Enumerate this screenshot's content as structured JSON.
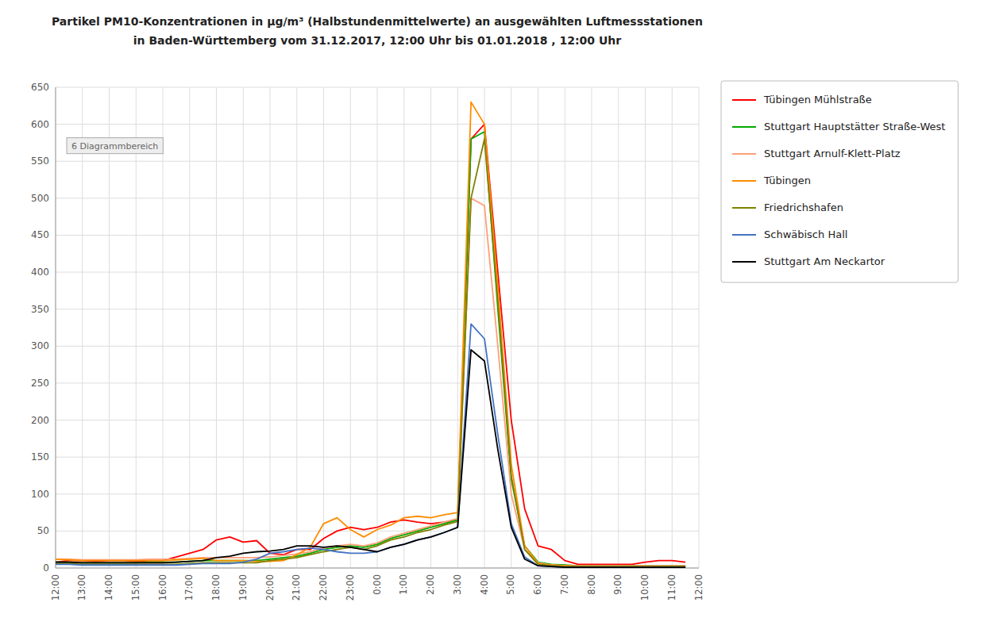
{
  "chart_data": {
    "type": "line",
    "title": "Partikel PM10-Konzentrationen in µg/m³ (Halbstundenmittelwerte) an ausgewählten Luftmessstationen",
    "subtitle": "in Baden-Württemberg vom 31.12.2017, 12:00 Uhr bis 01.01.2018 , 12:00 Uhr",
    "annotation": "6 Diagrammbereich",
    "x": [
      0,
      1,
      2,
      3,
      4,
      5,
      6,
      7,
      8,
      9,
      10,
      11,
      12,
      13,
      14,
      15,
      16,
      17,
      18,
      19,
      20,
      21,
      22,
      23,
      24,
      25,
      26,
      27,
      28,
      29,
      30,
      31,
      32,
      33,
      34,
      35,
      36,
      37,
      38,
      39,
      40,
      41,
      42,
      43,
      44,
      45,
      46,
      47
    ],
    "xlim": [
      0,
      48
    ],
    "xticks": [
      {
        "value": 0,
        "label": "12:00"
      },
      {
        "value": 2,
        "label": "13:00"
      },
      {
        "value": 4,
        "label": "14:00"
      },
      {
        "value": 6,
        "label": "15:00"
      },
      {
        "value": 8,
        "label": "16:00"
      },
      {
        "value": 10,
        "label": "17:00"
      },
      {
        "value": 12,
        "label": "18:00"
      },
      {
        "value": 14,
        "label": "19:00"
      },
      {
        "value": 16,
        "label": "20:00"
      },
      {
        "value": 18,
        "label": "21:00"
      },
      {
        "value": 20,
        "label": "22:00"
      },
      {
        "value": 22,
        "label": "23:00"
      },
      {
        "value": 24,
        "label": "0:00"
      },
      {
        "value": 26,
        "label": "1:00"
      },
      {
        "value": 28,
        "label": "2:00"
      },
      {
        "value": 30,
        "label": "3:00"
      },
      {
        "value": 32,
        "label": "4:00"
      },
      {
        "value": 34,
        "label": "5:00"
      },
      {
        "value": 36,
        "label": "6:00"
      },
      {
        "value": 38,
        "label": "7:00"
      },
      {
        "value": 40,
        "label": "8:00"
      },
      {
        "value": 42,
        "label": "9:00"
      },
      {
        "value": 44,
        "label": "10:00"
      },
      {
        "value": 46,
        "label": "11:00"
      },
      {
        "value": 48,
        "label": "12:00"
      }
    ],
    "ylim": [
      0,
      650
    ],
    "yticks": [
      0,
      50,
      100,
      150,
      200,
      250,
      300,
      350,
      400,
      450,
      500,
      550,
      600,
      650
    ],
    "grid": true,
    "legend": "right",
    "series": [
      {
        "name": "Tübingen Mühlstraße",
        "color": "#ff0000",
        "values": [
          8,
          10,
          10,
          9,
          10,
          10,
          9,
          10,
          10,
          15,
          20,
          25,
          38,
          42,
          35,
          37,
          20,
          18,
          25,
          25,
          40,
          50,
          55,
          52,
          55,
          62,
          65,
          62,
          60,
          62,
          65,
          580,
          600,
          400,
          200,
          80,
          30,
          25,
          10,
          5,
          5,
          5,
          5,
          5,
          8,
          10,
          10,
          8
        ]
      },
      {
        "name": "Stuttgart Hauptstätter Straße-West",
        "color": "#00aa00",
        "values": [
          8,
          8,
          7,
          7,
          7,
          7,
          7,
          8,
          8,
          8,
          9,
          10,
          10,
          10,
          10,
          10,
          12,
          14,
          16,
          20,
          25,
          28,
          30,
          28,
          32,
          40,
          45,
          50,
          55,
          60,
          65,
          580,
          590,
          350,
          120,
          30,
          8,
          5,
          4,
          3,
          3,
          3,
          3,
          3,
          3,
          3,
          3,
          3
        ]
      },
      {
        "name": "Stuttgart Arnulf-Klett-Platz",
        "color": "#ffa07a",
        "values": [
          12,
          12,
          11,
          11,
          11,
          11,
          11,
          12,
          12,
          12,
          13,
          14,
          14,
          14,
          14,
          14,
          15,
          17,
          19,
          22,
          27,
          30,
          32,
          30,
          34,
          42,
          47,
          52,
          57,
          62,
          67,
          500,
          490,
          300,
          100,
          25,
          7,
          4,
          3,
          3,
          3,
          3,
          3,
          3,
          3,
          3,
          3,
          3
        ]
      },
      {
        "name": "Tübingen",
        "color": "#ff8c00",
        "values": [
          12,
          11,
          10,
          10,
          10,
          10,
          10,
          10,
          10,
          11,
          12,
          13,
          10,
          10,
          10,
          9,
          9,
          10,
          18,
          28,
          60,
          68,
          52,
          42,
          52,
          58,
          68,
          70,
          68,
          72,
          75,
          630,
          600,
          380,
          140,
          30,
          6,
          4,
          3,
          2,
          2,
          2,
          2,
          2,
          2,
          2,
          2,
          2
        ]
      },
      {
        "name": "Friedrichshafen",
        "color": "#808000",
        "values": [
          6,
          6,
          5,
          5,
          5,
          5,
          5,
          5,
          5,
          5,
          6,
          7,
          7,
          7,
          7,
          7,
          10,
          12,
          14,
          18,
          22,
          25,
          28,
          25,
          30,
          38,
          42,
          48,
          52,
          58,
          63,
          500,
          580,
          360,
          125,
          25,
          5,
          3,
          2,
          2,
          2,
          2,
          2,
          2,
          2,
          2,
          2,
          2
        ]
      },
      {
        "name": "Schwäbisch Hall",
        "color": "#4472c4",
        "values": [
          5,
          5,
          4,
          4,
          4,
          4,
          4,
          4,
          4,
          4,
          5,
          6,
          6,
          6,
          8,
          12,
          20,
          22,
          25,
          27,
          25,
          22,
          20,
          20,
          22,
          28,
          32,
          38,
          42,
          48,
          55,
          330,
          310,
          180,
          60,
          15,
          3,
          2,
          1,
          1,
          1,
          1,
          1,
          1,
          1,
          1,
          1,
          1
        ]
      },
      {
        "name": "Stuttgart Am Neckartor",
        "color": "#000000",
        "values": [
          8,
          8,
          7,
          7,
          7,
          7,
          7,
          7,
          7,
          8,
          9,
          10,
          14,
          16,
          20,
          22,
          23,
          25,
          30,
          30,
          28,
          30,
          28,
          25,
          22,
          28,
          32,
          38,
          42,
          48,
          55,
          295,
          280,
          160,
          55,
          12,
          3,
          2,
          1,
          1,
          1,
          1,
          1,
          1,
          1,
          1,
          1,
          1
        ]
      }
    ]
  }
}
